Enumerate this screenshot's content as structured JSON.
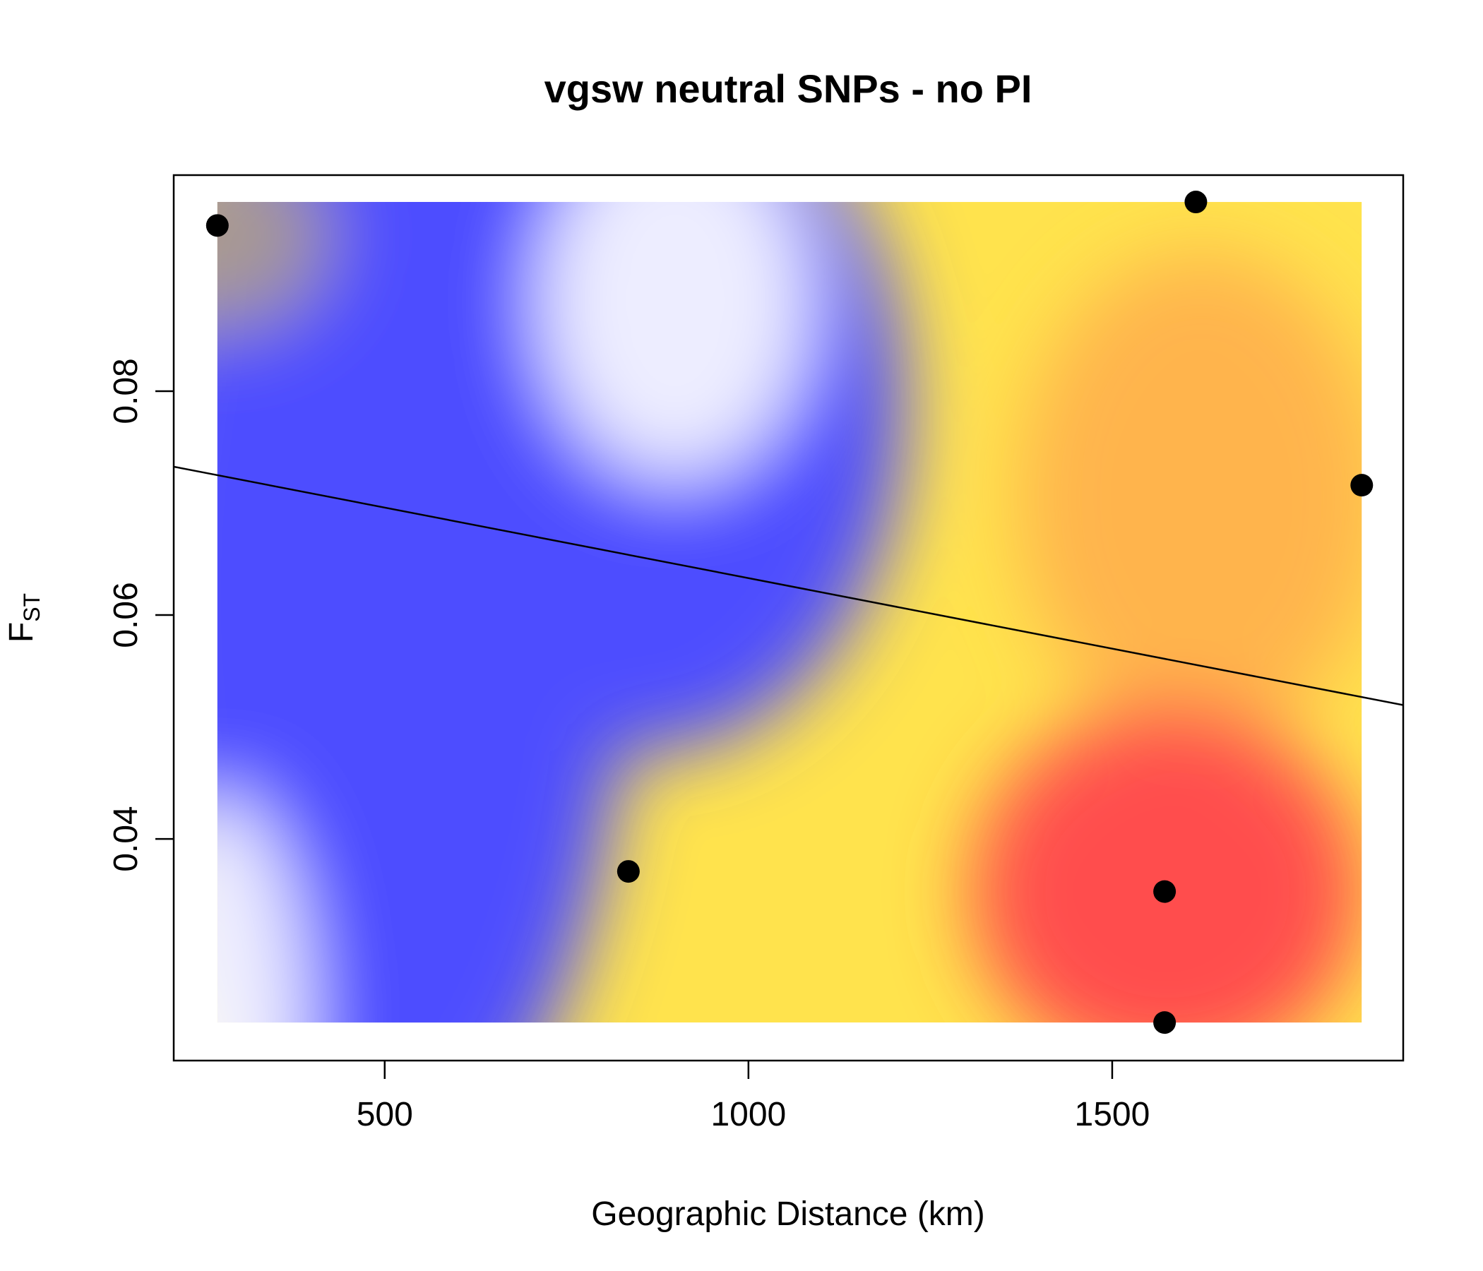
{
  "chart_data": {
    "type": "scatter",
    "title": "vgsw neutral SNPs - no PI",
    "xlabel": "Geographic Distance (km)",
    "ylabel": {
      "main": "F",
      "subscript": "ST"
    },
    "xlim": [
      210,
      1900
    ],
    "ylim": [
      0.0202,
      0.0993
    ],
    "x_ticks": [
      {
        "value": 500,
        "label": "500"
      },
      {
        "value": 1000,
        "label": "1000"
      },
      {
        "value": 1500,
        "label": "1500"
      }
    ],
    "y_ticks": [
      {
        "value": 0.04,
        "label": "0.04"
      },
      {
        "value": 0.06,
        "label": "0.06"
      },
      {
        "value": 0.08,
        "label": "0.08"
      }
    ],
    "points": [
      {
        "x": 270,
        "y": 0.0948
      },
      {
        "x": 835,
        "y": 0.0371
      },
      {
        "x": 1572,
        "y": 0.0353
      },
      {
        "x": 1572,
        "y": 0.0236
      },
      {
        "x": 1615,
        "y": 0.0969
      },
      {
        "x": 1843,
        "y": 0.0716
      }
    ],
    "regression_line": {
      "intercept": 0.0759,
      "slope": -1.26e-05
    },
    "density_background": {
      "x_range": [
        270,
        1843
      ],
      "y_range": [
        0.0236,
        0.0969
      ],
      "colors": {
        "white": "#ffffff",
        "blue": "#4d4dff",
        "yellow": "#ffe34d",
        "red": "#ff4d4d"
      }
    }
  }
}
